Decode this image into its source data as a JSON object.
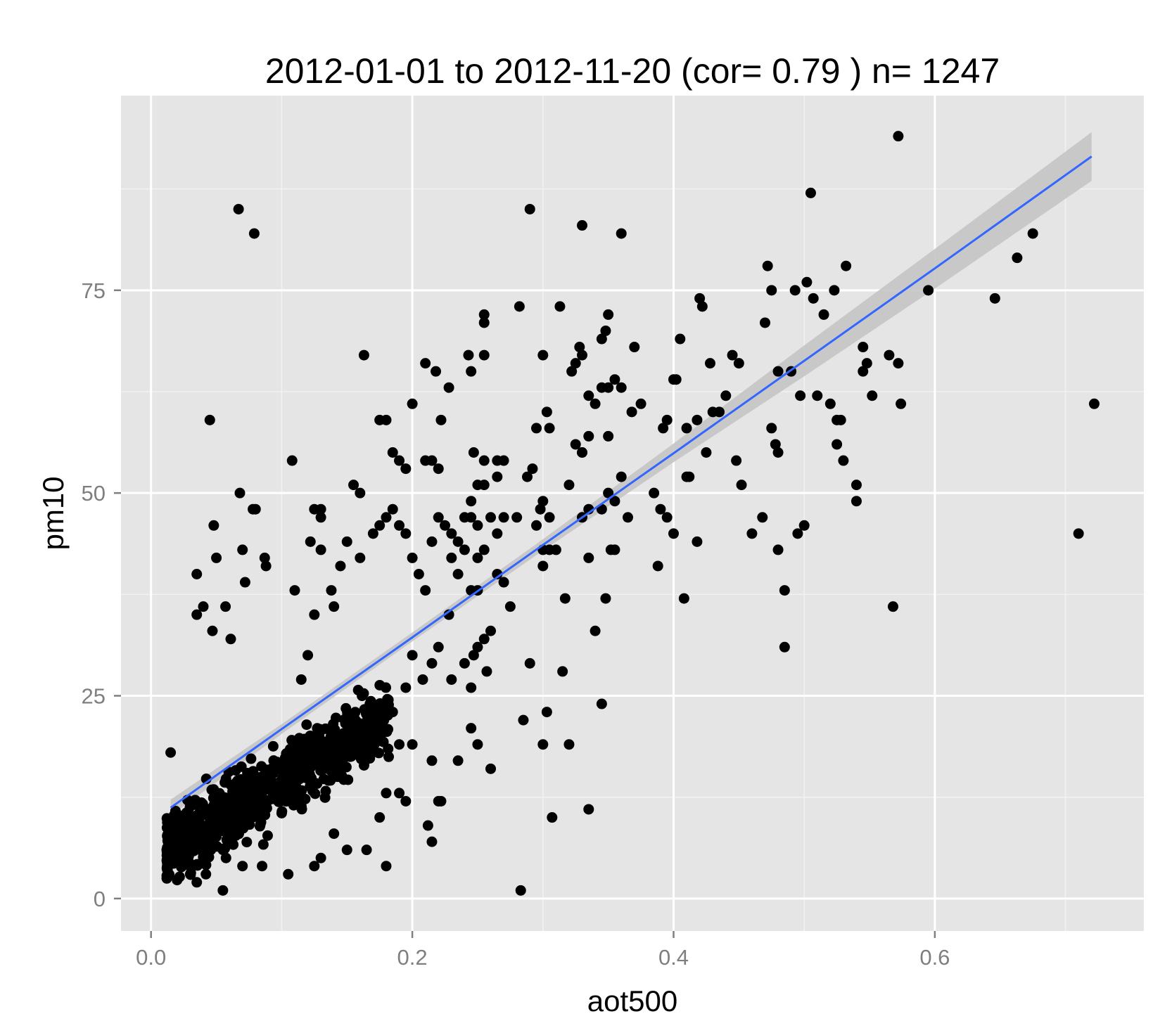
{
  "chart_data": {
    "type": "scatter",
    "title": "2012-01-01 to 2012-11-20 (cor= 0.79 ) n= 1247",
    "xlabel": "aot500",
    "ylabel": "pm10",
    "xlim": [
      -0.023,
      0.76
    ],
    "ylim": [
      -4,
      99
    ],
    "x_ticks": [
      0.0,
      0.2,
      0.4,
      0.6
    ],
    "x_tick_labels": [
      "0.0",
      "0.2",
      "0.4",
      "0.6"
    ],
    "y_ticks": [
      0,
      25,
      50,
      75
    ],
    "y_tick_labels": [
      "0",
      "25",
      "50",
      "75"
    ],
    "grid": true,
    "panel_background": "#e5e5e5",
    "grid_color": "#ffffff",
    "point_color": "#000000",
    "fit_line_color": "#3366ff",
    "ribbon_color": "#c4c4c4",
    "fit_line": {
      "x": [
        0.015,
        0.1,
        0.2,
        0.3,
        0.4,
        0.5,
        0.6,
        0.72
      ],
      "y": [
        11.2,
        20.9,
        32.2,
        43.6,
        54.9,
        66.3,
        77.7,
        91.5
      ],
      "lower": [
        10.2,
        20.3,
        31.7,
        42.9,
        53.8,
        64.4,
        75.2,
        88.5
      ],
      "upper": [
        12.2,
        21.5,
        32.8,
        44.3,
        56.1,
        68.2,
        80.1,
        94.5
      ]
    },
    "points": [
      [
        0.067,
        85
      ],
      [
        0.079,
        82
      ],
      [
        0.29,
        85
      ],
      [
        0.33,
        83
      ],
      [
        0.36,
        82
      ],
      [
        0.572,
        94
      ],
      [
        0.505,
        87
      ],
      [
        0.045,
        59
      ],
      [
        0.108,
        54
      ],
      [
        0.048,
        46
      ],
      [
        0.068,
        50
      ],
      [
        0.078,
        48
      ],
      [
        0.08,
        48
      ],
      [
        0.07,
        43
      ],
      [
        0.087,
        42
      ],
      [
        0.088,
        41
      ],
      [
        0.072,
        39
      ],
      [
        0.05,
        42
      ],
      [
        0.035,
        40
      ],
      [
        0.04,
        36
      ],
      [
        0.057,
        36
      ],
      [
        0.035,
        35
      ],
      [
        0.047,
        33
      ],
      [
        0.061,
        32
      ],
      [
        0.11,
        38
      ],
      [
        0.125,
        35
      ],
      [
        0.122,
        44
      ],
      [
        0.13,
        43
      ],
      [
        0.13,
        47
      ],
      [
        0.125,
        48
      ],
      [
        0.13,
        48
      ],
      [
        0.12,
        30
      ],
      [
        0.115,
        27
      ],
      [
        0.163,
        67
      ],
      [
        0.16,
        50
      ],
      [
        0.155,
        51
      ],
      [
        0.15,
        44
      ],
      [
        0.145,
        41
      ],
      [
        0.14,
        36
      ],
      [
        0.138,
        38
      ],
      [
        0.16,
        42
      ],
      [
        0.17,
        45
      ],
      [
        0.175,
        46
      ],
      [
        0.18,
        47
      ],
      [
        0.185,
        48
      ],
      [
        0.19,
        46
      ],
      [
        0.195,
        45
      ],
      [
        0.2,
        42
      ],
      [
        0.205,
        40
      ],
      [
        0.21,
        38
      ],
      [
        0.18,
        59
      ],
      [
        0.175,
        59
      ],
      [
        0.185,
        55
      ],
      [
        0.19,
        54
      ],
      [
        0.195,
        53
      ],
      [
        0.2,
        61
      ],
      [
        0.21,
        66
      ],
      [
        0.218,
        65
      ],
      [
        0.228,
        63
      ],
      [
        0.222,
        59
      ],
      [
        0.21,
        54
      ],
      [
        0.215,
        54
      ],
      [
        0.22,
        53
      ],
      [
        0.225,
        46
      ],
      [
        0.215,
        44
      ],
      [
        0.22,
        47
      ],
      [
        0.23,
        45
      ],
      [
        0.235,
        44
      ],
      [
        0.24,
        47
      ],
      [
        0.245,
        47
      ],
      [
        0.25,
        46
      ],
      [
        0.24,
        43
      ],
      [
        0.23,
        42
      ],
      [
        0.235,
        40
      ],
      [
        0.228,
        35
      ],
      [
        0.22,
        31
      ],
      [
        0.215,
        29
      ],
      [
        0.208,
        27
      ],
      [
        0.2,
        30
      ],
      [
        0.195,
        26
      ],
      [
        0.185,
        23
      ],
      [
        0.19,
        19
      ],
      [
        0.2,
        19
      ],
      [
        0.195,
        12
      ],
      [
        0.19,
        13
      ],
      [
        0.18,
        13
      ],
      [
        0.175,
        10
      ],
      [
        0.18,
        4
      ],
      [
        0.165,
        6
      ],
      [
        0.15,
        6
      ],
      [
        0.14,
        8
      ],
      [
        0.13,
        5
      ],
      [
        0.125,
        4
      ],
      [
        0.105,
        3
      ],
      [
        0.085,
        4
      ],
      [
        0.07,
        4
      ],
      [
        0.055,
        1
      ],
      [
        0.035,
        2
      ],
      [
        0.03,
        3
      ],
      [
        0.02,
        5
      ],
      [
        0.015,
        5
      ],
      [
        0.012,
        6
      ],
      [
        0.018,
        8
      ],
      [
        0.015,
        18
      ],
      [
        0.042,
        3
      ],
      [
        0.055,
        6
      ],
      [
        0.06,
        8
      ],
      [
        0.283,
        1
      ],
      [
        0.282,
        73
      ],
      [
        0.255,
        72
      ],
      [
        0.255,
        71
      ],
      [
        0.255,
        67
      ],
      [
        0.243,
        67
      ],
      [
        0.245,
        65
      ],
      [
        0.247,
        55
      ],
      [
        0.255,
        54
      ],
      [
        0.265,
        54
      ],
      [
        0.27,
        54
      ],
      [
        0.265,
        52
      ],
      [
        0.255,
        51
      ],
      [
        0.25,
        51
      ],
      [
        0.245,
        49
      ],
      [
        0.26,
        47
      ],
      [
        0.27,
        47
      ],
      [
        0.28,
        47
      ],
      [
        0.265,
        45
      ],
      [
        0.255,
        43
      ],
      [
        0.25,
        42
      ],
      [
        0.265,
        40
      ],
      [
        0.27,
        39
      ],
      [
        0.245,
        38
      ],
      [
        0.25,
        38
      ],
      [
        0.275,
        36
      ],
      [
        0.26,
        33
      ],
      [
        0.255,
        32
      ],
      [
        0.25,
        31
      ],
      [
        0.247,
        30
      ],
      [
        0.24,
        29
      ],
      [
        0.23,
        27
      ],
      [
        0.245,
        26
      ],
      [
        0.257,
        28
      ],
      [
        0.245,
        21
      ],
      [
        0.25,
        19
      ],
      [
        0.26,
        16
      ],
      [
        0.235,
        17
      ],
      [
        0.215,
        17
      ],
      [
        0.212,
        9
      ],
      [
        0.215,
        7
      ],
      [
        0.22,
        12
      ],
      [
        0.222,
        12
      ],
      [
        0.3,
        67
      ],
      [
        0.313,
        73
      ],
      [
        0.322,
        65
      ],
      [
        0.325,
        66
      ],
      [
        0.328,
        68
      ],
      [
        0.33,
        67
      ],
      [
        0.335,
        62
      ],
      [
        0.34,
        61
      ],
      [
        0.345,
        63
      ],
      [
        0.35,
        63
      ],
      [
        0.355,
        64
      ],
      [
        0.345,
        69
      ],
      [
        0.348,
        70
      ],
      [
        0.35,
        72
      ],
      [
        0.37,
        68
      ],
      [
        0.375,
        61
      ],
      [
        0.368,
        60
      ],
      [
        0.36,
        63
      ],
      [
        0.35,
        57
      ],
      [
        0.335,
        57
      ],
      [
        0.33,
        55
      ],
      [
        0.325,
        56
      ],
      [
        0.303,
        60
      ],
      [
        0.305,
        58
      ],
      [
        0.295,
        58
      ],
      [
        0.292,
        53
      ],
      [
        0.288,
        52
      ],
      [
        0.3,
        49
      ],
      [
        0.298,
        48
      ],
      [
        0.305,
        47
      ],
      [
        0.295,
        46
      ],
      [
        0.3,
        43
      ],
      [
        0.305,
        43
      ],
      [
        0.31,
        43
      ],
      [
        0.32,
        51
      ],
      [
        0.33,
        55
      ],
      [
        0.335,
        42
      ],
      [
        0.34,
        33
      ],
      [
        0.345,
        24
      ],
      [
        0.348,
        37
      ],
      [
        0.352,
        43
      ],
      [
        0.355,
        43
      ],
      [
        0.33,
        47
      ],
      [
        0.335,
        48
      ],
      [
        0.345,
        48
      ],
      [
        0.35,
        50
      ],
      [
        0.355,
        49
      ],
      [
        0.36,
        52
      ],
      [
        0.365,
        47
      ],
      [
        0.385,
        50
      ],
      [
        0.39,
        48
      ],
      [
        0.395,
        47
      ],
      [
        0.388,
        41
      ],
      [
        0.392,
        58
      ],
      [
        0.395,
        59
      ],
      [
        0.4,
        64
      ],
      [
        0.402,
        64
      ],
      [
        0.405,
        69
      ],
      [
        0.41,
        58
      ],
      [
        0.412,
        52
      ],
      [
        0.418,
        59
      ],
      [
        0.42,
        74
      ],
      [
        0.422,
        73
      ],
      [
        0.428,
        66
      ],
      [
        0.43,
        60
      ],
      [
        0.435,
        60
      ],
      [
        0.44,
        62
      ],
      [
        0.445,
        67
      ],
      [
        0.45,
        66
      ],
      [
        0.448,
        54
      ],
      [
        0.452,
        51
      ],
      [
        0.46,
        45
      ],
      [
        0.468,
        47
      ],
      [
        0.472,
        78
      ],
      [
        0.475,
        75
      ],
      [
        0.48,
        65
      ],
      [
        0.478,
        56
      ],
      [
        0.47,
        71
      ],
      [
        0.475,
        58
      ],
      [
        0.48,
        55
      ],
      [
        0.48,
        43
      ],
      [
        0.485,
        38
      ],
      [
        0.485,
        31
      ],
      [
        0.495,
        45
      ],
      [
        0.5,
        46
      ],
      [
        0.49,
        65
      ],
      [
        0.493,
        75
      ],
      [
        0.497,
        62
      ],
      [
        0.502,
        76
      ],
      [
        0.507,
        74
      ],
      [
        0.51,
        62
      ],
      [
        0.515,
        72
      ],
      [
        0.52,
        61
      ],
      [
        0.525,
        59
      ],
      [
        0.528,
        59
      ],
      [
        0.525,
        56
      ],
      [
        0.53,
        54
      ],
      [
        0.523,
        75
      ],
      [
        0.532,
        78
      ],
      [
        0.54,
        51
      ],
      [
        0.54,
        49
      ],
      [
        0.545,
        68
      ],
      [
        0.545,
        65
      ],
      [
        0.548,
        66
      ],
      [
        0.552,
        62
      ],
      [
        0.565,
        67
      ],
      [
        0.568,
        36
      ],
      [
        0.572,
        66
      ],
      [
        0.574,
        61
      ],
      [
        0.595,
        75
      ],
      [
        0.646,
        74
      ],
      [
        0.663,
        79
      ],
      [
        0.675,
        82
      ],
      [
        0.71,
        45
      ],
      [
        0.722,
        61
      ],
      [
        0.408,
        37
      ],
      [
        0.418,
        44
      ],
      [
        0.425,
        55
      ],
      [
        0.335,
        11
      ],
      [
        0.32,
        19
      ],
      [
        0.307,
        10
      ],
      [
        0.3,
        19
      ],
      [
        0.303,
        23
      ],
      [
        0.315,
        28
      ],
      [
        0.29,
        29
      ],
      [
        0.3,
        41
      ],
      [
        0.317,
        37
      ],
      [
        0.285,
        22
      ],
      [
        0.4,
        45
      ],
      [
        0.41,
        52
      ]
    ],
    "cluster_seed": 12345,
    "cluster_count": 900
  }
}
